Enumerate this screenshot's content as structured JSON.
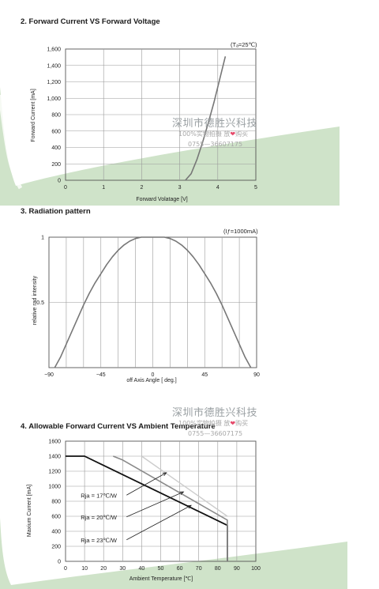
{
  "chart_data": [
    {
      "type": "line",
      "title": "2. Forward Current VS Forward Voltage",
      "condition": "(Tₐ=25℃)",
      "xlabel": "Forward  Volatage [V]",
      "ylabel": "Forward Current [mA]",
      "xlim": [
        0,
        5
      ],
      "ylim": [
        0,
        1600
      ],
      "xticks": [
        "0",
        "1",
        "2",
        "3",
        "4",
        "5"
      ],
      "yticks": [
        "0",
        "200",
        "400",
        "600",
        "800",
        "1,000",
        "1,200",
        "1,400",
        "1,600"
      ],
      "grid": true,
      "series": [
        {
          "color": "#777777",
          "x": [
            3.15,
            3.3,
            3.45,
            3.6,
            3.75,
            3.9,
            4.05,
            4.2
          ],
          "y": [
            0,
            80,
            250,
            460,
            700,
            950,
            1230,
            1510
          ]
        }
      ]
    },
    {
      "type": "line",
      "title": "3. Radiation pattern",
      "condition": "(Iƒ=1000mA)",
      "xlabel": "off Axis Angle [ deg.]",
      "ylabel": "relative rad intensity",
      "xlim": [
        -90,
        90
      ],
      "ylim": [
        0,
        1
      ],
      "xticks": [
        "−90",
        "−45",
        "0",
        "45",
        "90"
      ],
      "yticks": [
        "0.5",
        "1"
      ],
      "grid": true,
      "series": [
        {
          "color": "#777777",
          "x": [
            -85,
            -80,
            -75,
            -70,
            -65,
            -60,
            -55,
            -50,
            -45,
            -40,
            -35,
            -30,
            -25,
            -20,
            -15,
            -10,
            -5,
            0,
            5,
            10,
            15,
            20,
            25,
            30,
            35,
            40,
            45,
            50,
            55,
            60,
            65,
            70,
            75,
            80,
            85
          ],
          "y": [
            0.0,
            0.08,
            0.18,
            0.28,
            0.38,
            0.48,
            0.57,
            0.65,
            0.72,
            0.79,
            0.85,
            0.9,
            0.94,
            0.97,
            0.99,
            1.0,
            1.0,
            1.0,
            1.0,
            1.0,
            0.99,
            0.97,
            0.94,
            0.9,
            0.85,
            0.79,
            0.72,
            0.65,
            0.57,
            0.48,
            0.38,
            0.28,
            0.18,
            0.08,
            0.0
          ]
        }
      ]
    },
    {
      "type": "line",
      "title": "4. Allowable Forward Current  VS  Ambient Temperature",
      "xlabel": "Ambient Temperature [℃]",
      "ylabel": "Maxium Current [mA]",
      "xlim": [
        0,
        100
      ],
      "ylim": [
        0,
        1600
      ],
      "xticks": [
        "0",
        "10",
        "20",
        "30",
        "40",
        "50",
        "60",
        "70",
        "80",
        "90",
        "100"
      ],
      "yticks": [
        "0",
        "200",
        "400",
        "600",
        "800",
        "1000",
        "1200",
        "1400",
        "1600"
      ],
      "grid": true,
      "series": [
        {
          "name": "Rja = 23℃/W",
          "color": "#111111",
          "width": 1.8,
          "x": [
            0,
            10,
            85,
            85
          ],
          "y": [
            1400,
            1400,
            480,
            0
          ]
        },
        {
          "name": "Rja = 20℃/W",
          "color": "#8a8a8a",
          "width": 1.6,
          "x": [
            25,
            30,
            85,
            85
          ],
          "y": [
            1400,
            1350,
            550,
            0
          ]
        },
        {
          "name": "Rja = 17℃/W",
          "color": "#cccccc",
          "width": 1.4,
          "x": [
            40,
            85
          ],
          "y": [
            1400,
            600
          ]
        }
      ],
      "annotations": [
        {
          "text": "Rja = 17℃/W",
          "label_x": 8,
          "label_y": 850,
          "arrow_to": [
            53,
            1180
          ]
        },
        {
          "text": "Rja = 20℃/W",
          "label_x": 8,
          "label_y": 560,
          "arrow_to": [
            62,
            925
          ]
        },
        {
          "text": "Rja = 23℃/W",
          "label_x": 8,
          "label_y": 255,
          "arrow_to": [
            66,
            745
          ]
        }
      ]
    }
  ],
  "watermarks": [
    {
      "company": "深圳市德胜兴科技",
      "line1_before": "100%实物拍摄  放",
      "heart": "❤",
      "line1_after": "购买",
      "phone": "0755—36607175"
    },
    {
      "company": "深圳市德胜兴科技",
      "line1_before": "100%实物拍摄  放",
      "heart": "❤",
      "line1_after": "购买",
      "phone": "0755—36607175"
    }
  ],
  "colors": {
    "swoosh": "#cfe3c9",
    "grid": "#9a9a9a",
    "heart": "#e64a6b"
  }
}
